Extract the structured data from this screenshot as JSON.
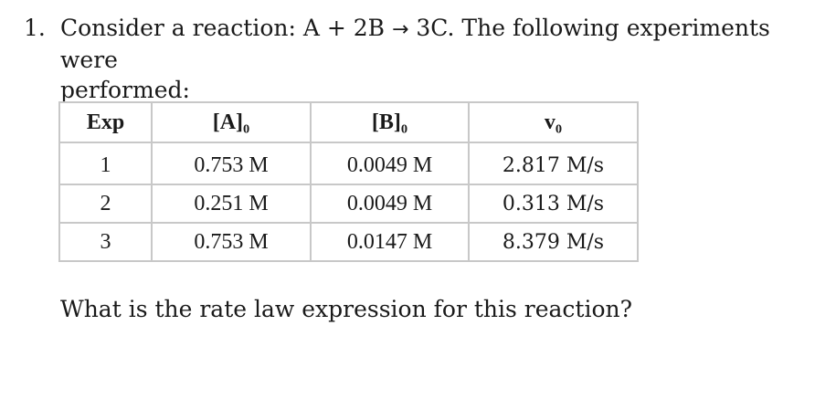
{
  "question": {
    "number": "1.",
    "text_line1": "Consider a reaction: A + 2B ",
    "arrow": "→",
    "text_line1_end": " 3C. The following experiments were",
    "text_line2": "performed:"
  },
  "table": {
    "headers": [
      "Exp",
      "[A]₀",
      "[B]₀",
      "v₀"
    ],
    "rows": [
      [
        "1",
        "0.753 M",
        "0.0049 M",
        "2.817 M/s"
      ],
      [
        "2",
        "0.251 M",
        "0.0049 M",
        "0.313 M/s"
      ],
      [
        "3",
        "0.753 M",
        "0.0147 M",
        "8.379 M/s"
      ]
    ]
  },
  "follow_up": "What is the rate law expression for this reaction?"
}
